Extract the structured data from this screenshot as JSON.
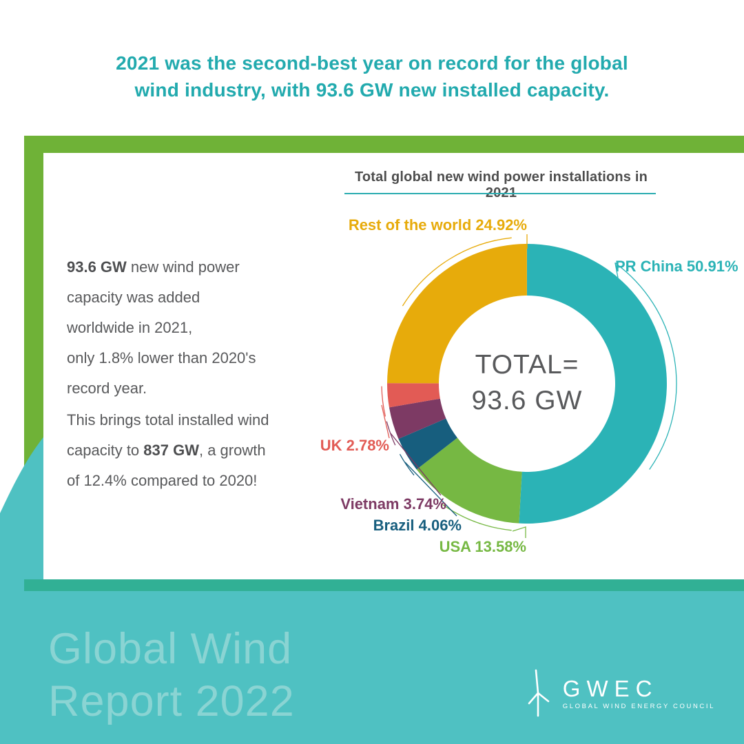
{
  "header": {
    "lines": [
      "2021 was the second-best year on record for the global",
      "wind industry, with 93.6 GW new installed capacity."
    ]
  },
  "card": {
    "paragraphs": [
      {
        "runs": [
          {
            "t": "93.6 GW",
            "b": true
          },
          {
            "t": " new wind power"
          },
          {
            "br": true
          },
          {
            "t": "capacity was added"
          },
          {
            "br": true
          },
          {
            "t": "worldwide in 2021,"
          },
          {
            "br": true
          },
          {
            "t": "only 1.8% lower than 2020's"
          },
          {
            "br": true
          },
          {
            "t": "record year."
          }
        ]
      },
      {
        "runs": [
          {
            "t": "This brings total installed wind"
          },
          {
            "br": true
          },
          {
            "t": "capacity to "
          },
          {
            "t": "837 GW",
            "b": true
          },
          {
            "t": ", a growth"
          },
          {
            "br": true
          },
          {
            "t": "of 12.4% compared to 2020!"
          }
        ]
      }
    ]
  },
  "chart_data": {
    "type": "pie",
    "style": "donut",
    "title": "Total global new wind power installations in 2021",
    "total_label": "TOTAL=",
    "total_value": "93.6 GW",
    "total_gw": 93.6,
    "legend_position": "callout-labels",
    "segments": [
      {
        "key": "prchina",
        "label": "PR China",
        "value_pct": 50.91,
        "display": "PR China 50.91%",
        "color": "#2BB3B6"
      },
      {
        "key": "usa",
        "label": "USA",
        "value_pct": 13.58,
        "display": "USA 13.58%",
        "color": "#76B843"
      },
      {
        "key": "brazil",
        "label": "Brazil",
        "value_pct": 4.06,
        "display": "Brazil 4.06%",
        "color": "#175E7E"
      },
      {
        "key": "vietnam",
        "label": "Vietnam",
        "value_pct": 3.74,
        "display": "Vietnam 3.74%",
        "color": "#7D3A64"
      },
      {
        "key": "uk",
        "label": "UK",
        "value_pct": 2.78,
        "display": "UK 2.78%",
        "color": "#E25B55"
      },
      {
        "key": "row",
        "label": "Rest of the world",
        "value_pct": 24.92,
        "display": "Rest of the world 24.92%",
        "color": "#E7AB0B"
      }
    ]
  },
  "footer": {
    "title_lines": [
      "Global Wind",
      "Report 2022"
    ],
    "logo": {
      "name": "GWEC",
      "tagline": "GLOBAL WIND ENERGY COUNCIL"
    }
  },
  "colors": {
    "header_teal": "#22AAAE",
    "frame_green": "#6FB237",
    "background_teal": "#4FC1C2",
    "band_teal_green": "#31B095",
    "body_text_gray": "#58595B",
    "chart_title_gray": "#4D4D4D",
    "footer_title_teal": "#8AD4D3"
  }
}
